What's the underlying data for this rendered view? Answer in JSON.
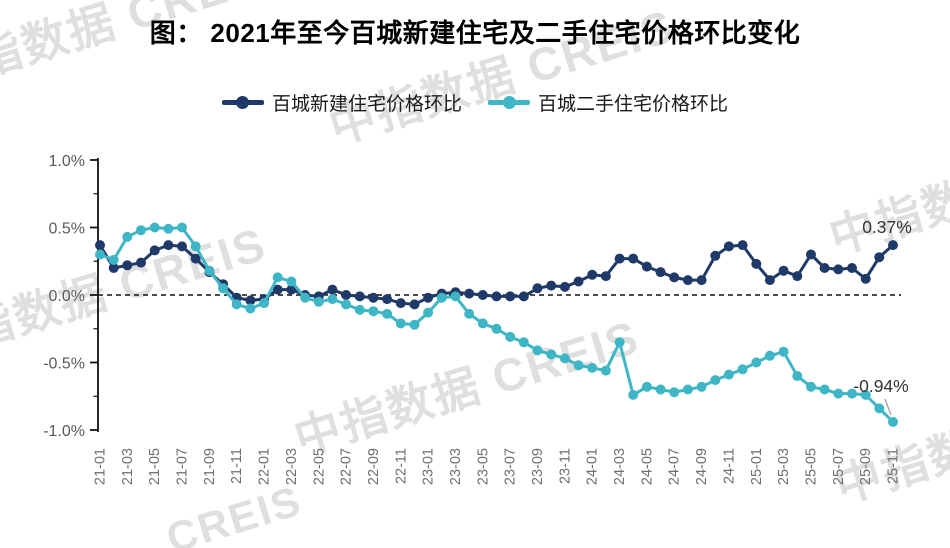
{
  "title": "图： 2021年至今百城新建住宅及二手住宅价格环比变化",
  "watermark": {
    "text": "中指数据 CREIS",
    "short_text": "CREIS"
  },
  "legend": [
    {
      "label": "百城新建住宅价格环比",
      "color": "#1f3a68"
    },
    {
      "label": "百城二手住宅价格环比",
      "color": "#3fb6c6"
    }
  ],
  "chart_data": {
    "type": "line",
    "title": "2021年至今百城新建住宅及二手住宅价格环比变化",
    "xlabel": "",
    "ylabel": "",
    "ylim": [
      -1.0,
      1.0
    ],
    "grid": false,
    "zero_line": "dashed",
    "legend_position": "top",
    "x_tick_every": 2,
    "y_ticks": [
      {
        "value": 1.0,
        "label": "1.0%"
      },
      {
        "value": 0.5,
        "label": "0.5%"
      },
      {
        "value": 0.0,
        "label": "0.0%"
      },
      {
        "value": -0.5,
        "label": "-0.5%"
      },
      {
        "value": -1.0,
        "label": "-1.0%"
      }
    ],
    "x": [
      "21-01",
      "21-02",
      "21-03",
      "21-04",
      "21-05",
      "21-06",
      "21-07",
      "21-08",
      "21-09",
      "21-10",
      "21-11",
      "21-12",
      "22-01",
      "22-02",
      "22-03",
      "22-04",
      "22-05",
      "22-06",
      "22-07",
      "22-08",
      "22-09",
      "22-10",
      "22-11",
      "22-12",
      "23-01",
      "23-02",
      "23-03",
      "23-04",
      "23-05",
      "23-06",
      "23-07",
      "23-08",
      "23-09",
      "23-10",
      "23-11",
      "23-12",
      "24-01",
      "24-02",
      "24-03",
      "24-04",
      "24-05",
      "24-06",
      "24-07",
      "24-08",
      "24-09",
      "24-10",
      "24-11",
      "24-12",
      "25-01",
      "25-02",
      "25-03",
      "25-04",
      "25-05",
      "25-06",
      "25-07",
      "25-08",
      "25-09",
      "25-10",
      "25-11"
    ],
    "series": [
      {
        "name": "百城新建住宅价格环比",
        "color": "#1f3a68",
        "values": [
          0.37,
          0.2,
          0.22,
          0.24,
          0.33,
          0.37,
          0.36,
          0.27,
          0.17,
          0.08,
          -0.02,
          -0.04,
          -0.03,
          0.04,
          0.04,
          0.0,
          -0.01,
          0.04,
          0.0,
          -0.01,
          -0.02,
          -0.03,
          -0.06,
          -0.07,
          -0.02,
          0.01,
          0.02,
          0.01,
          0.0,
          -0.01,
          -0.01,
          -0.01,
          0.05,
          0.07,
          0.06,
          0.1,
          0.15,
          0.14,
          0.27,
          0.27,
          0.21,
          0.17,
          0.13,
          0.11,
          0.11,
          0.29,
          0.36,
          0.37,
          0.23,
          0.11,
          0.18,
          0.14,
          0.3,
          0.2,
          0.19,
          0.2,
          0.12,
          0.28,
          0.37
        ]
      },
      {
        "name": "百城二手住宅价格环比",
        "color": "#3fb6c6",
        "values": [
          0.3,
          0.26,
          0.43,
          0.48,
          0.5,
          0.49,
          0.5,
          0.36,
          0.18,
          0.05,
          -0.07,
          -0.1,
          -0.06,
          0.13,
          0.1,
          -0.02,
          -0.05,
          -0.03,
          -0.07,
          -0.11,
          -0.12,
          -0.14,
          -0.21,
          -0.22,
          -0.13,
          -0.02,
          -0.01,
          -0.14,
          -0.21,
          -0.25,
          -0.31,
          -0.35,
          -0.41,
          -0.44,
          -0.47,
          -0.52,
          -0.54,
          -0.56,
          -0.35,
          -0.74,
          -0.68,
          -0.7,
          -0.72,
          -0.7,
          -0.68,
          -0.63,
          -0.59,
          -0.55,
          -0.5,
          -0.45,
          -0.42,
          -0.6,
          -0.68,
          -0.7,
          -0.73,
          -0.73,
          -0.74,
          -0.84,
          -0.94
        ]
      }
    ],
    "annotations": [
      {
        "text": "0.37%",
        "target": "last-point-new-homes",
        "leader_line": false
      },
      {
        "text": "-0.94%",
        "target": "last-point-secondhand",
        "leader_line": true
      }
    ]
  }
}
